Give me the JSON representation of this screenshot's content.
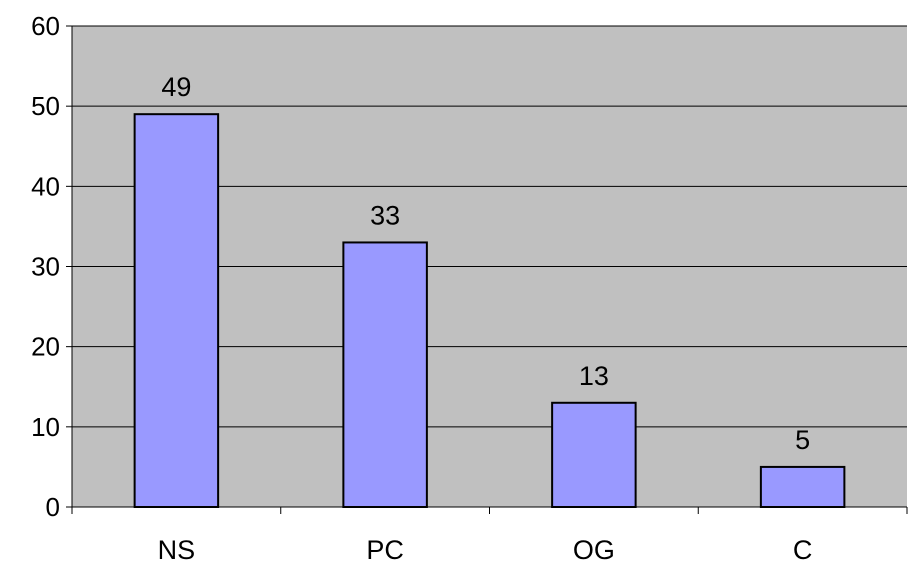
{
  "chart_data": {
    "type": "bar",
    "title": "",
    "xlabel": "",
    "ylabel": "",
    "categories": [
      "NS",
      "PC",
      "OG",
      "C"
    ],
    "values": [
      49,
      33,
      13,
      5
    ],
    "data_labels": [
      "49",
      "33",
      "13",
      "5"
    ],
    "ylim": [
      0,
      60
    ],
    "yticks": [
      "0",
      "10",
      "20",
      "30",
      "40",
      "50",
      "60"
    ],
    "grid": true,
    "legend": "none",
    "colors": {
      "plot_background": "#c0c0c0",
      "bar_fill": "#9999ff",
      "bar_stroke": "#000000",
      "gridline": "#000000"
    }
  }
}
